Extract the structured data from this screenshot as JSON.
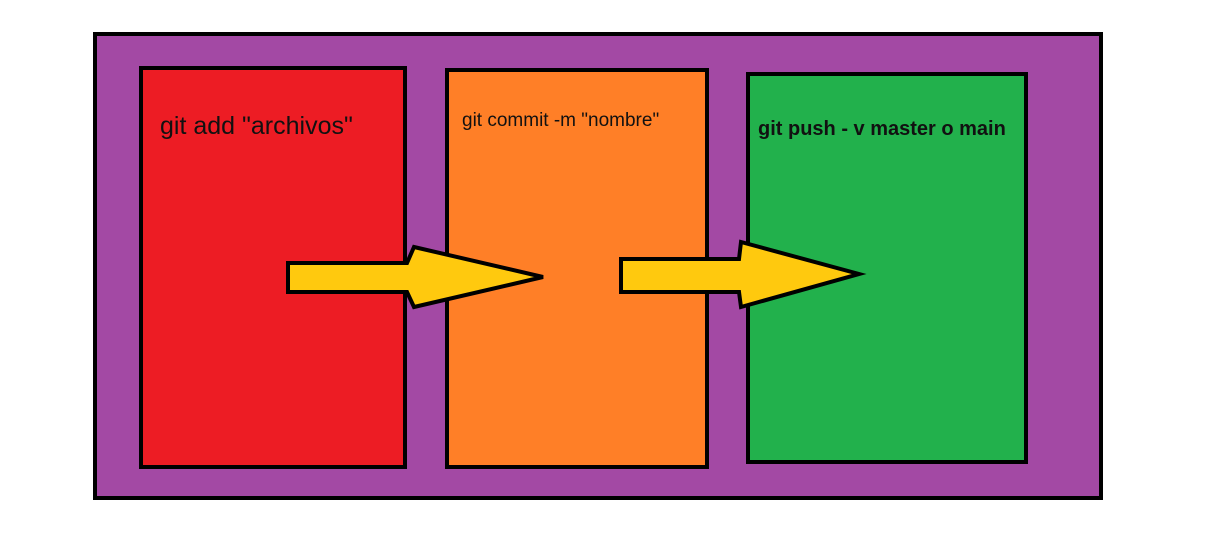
{
  "colors": {
    "frame": "#A349A4",
    "add_box": "#ED1C24",
    "commit_box": "#FF7F27",
    "push_box": "#22B14C",
    "arrow": "#FFC90E",
    "outline": "#000000"
  },
  "steps": [
    {
      "label": "git add \"archivos\""
    },
    {
      "label": "git commit -m \"nombre\""
    },
    {
      "label": "git push - v master o main"
    }
  ]
}
